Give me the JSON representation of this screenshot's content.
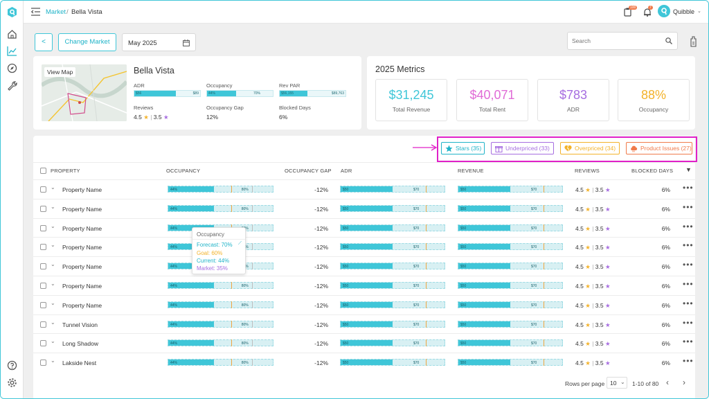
{
  "breadcrumb": {
    "parent": "Market",
    "separator": "/",
    "current": "Bella Vista"
  },
  "header": {
    "cart_badge": "100",
    "bell_badge": "7",
    "user_name": "Quibble"
  },
  "toolbar": {
    "back_label": "<",
    "change_market_label": "Change Market",
    "date_value": "May 2025",
    "search_placeholder": "Search"
  },
  "property_card": {
    "view_map_label": "View Map",
    "name": "Bella Vista",
    "adr": {
      "label": "ADR",
      "left": "$56",
      "right": "$89",
      "fill": 0.63
    },
    "occupancy": {
      "label": "Occupancy",
      "left": "44%",
      "right": "70%",
      "fill": 0.44
    },
    "revpar": {
      "label": "Rev PAR",
      "left": "$56,155",
      "right": "$89,763",
      "fill": 0.42
    },
    "reviews": {
      "label": "Reviews",
      "star_rating": "4.5",
      "sep": "|",
      "purple_rating": "3.5"
    },
    "occupancy_gap": {
      "label": "Occupancy Gap",
      "value": "12%"
    },
    "blocked_days": {
      "label": "Blocked Days",
      "value": "6%"
    }
  },
  "metrics": {
    "title": "2025 Metrics",
    "items": [
      {
        "value": "$31,245",
        "label": "Total Revenue",
        "color": "#3fc6d8"
      },
      {
        "value": "$40,071",
        "label": "Total Rent",
        "color": "#e06bd6"
      },
      {
        "value": "$783",
        "label": "ADR",
        "color": "#a66de0"
      },
      {
        "value": "88%",
        "label": "Occupancy",
        "color": "#f3b22a"
      }
    ]
  },
  "filters": [
    {
      "label": "Stars (35)",
      "color": "#1fb3c8",
      "icon": "star-icon"
    },
    {
      "label": "Underpriced (33)",
      "color": "#a66de0",
      "icon": "gift-icon"
    },
    {
      "label": "Overpriced (34)",
      "color": "#f3b22a",
      "icon": "broken-heart-icon"
    },
    {
      "label": "Product Issues (27)",
      "color": "#f07a4a",
      "icon": "cloud-icon"
    }
  ],
  "highlight_color": "#e020c8",
  "table": {
    "headers": {
      "property": "PROPERTY",
      "occupancy": "OCCUPANCY",
      "occupancy_gap": "OCCUPANCY GAP",
      "adr": "ADR",
      "revenue": "REVENUE",
      "reviews": "REVIEWS",
      "blocked_days": "BLOCKED DAYS"
    },
    "occ_bar": {
      "left": "44%",
      "right": "80%",
      "fill": 0.44,
      "goal": 0.6,
      "mark": 0.8
    },
    "adr_bar": {
      "left": "$50",
      "right": "$70",
      "fill": 0.5,
      "goal": 0.82
    },
    "rev_bar": {
      "left": "$50",
      "right": "$70",
      "fill": 0.5,
      "goal": 0.82
    },
    "rows": [
      {
        "name": "Property Name",
        "gap": "-12%",
        "star": "4.5",
        "sep": "|",
        "purple": "3.5",
        "blocked": "6%"
      },
      {
        "name": "Property Name",
        "gap": "-12%",
        "star": "4.5",
        "sep": "|",
        "purple": "3.5",
        "blocked": "6%"
      },
      {
        "name": "Property Name",
        "gap": "-12%",
        "star": "4.5",
        "sep": "|",
        "purple": "3.5",
        "blocked": "6%"
      },
      {
        "name": "Property Name",
        "gap": "-12%",
        "star": "4.5",
        "sep": "|",
        "purple": "3.5",
        "blocked": "6%"
      },
      {
        "name": "Property Name",
        "gap": "-12%",
        "star": "4.5",
        "sep": "|",
        "purple": "3.5",
        "blocked": "6%"
      },
      {
        "name": "Property Name",
        "gap": "-12%",
        "star": "4.5",
        "sep": "|",
        "purple": "3.5",
        "blocked": "6%"
      },
      {
        "name": "Property Name",
        "gap": "-12%",
        "star": "4.5",
        "sep": "|",
        "purple": "3.5",
        "blocked": "6%"
      },
      {
        "name": "Tunnel Vision",
        "gap": "-12%",
        "star": "4.5",
        "sep": "|",
        "purple": "3.5",
        "blocked": "6%"
      },
      {
        "name": "Long Shadow",
        "gap": "-12%",
        "star": "4.5",
        "sep": "|",
        "purple": "3.5",
        "blocked": "6%"
      },
      {
        "name": "Lakside Nest",
        "gap": "-12%",
        "star": "4.5",
        "sep": "|",
        "purple": "3.5",
        "blocked": "6%"
      }
    ]
  },
  "tooltip": {
    "title": "Occupancy",
    "forecast": "Forecast: 70%",
    "goal": "Goal: 60%",
    "current": "Current: 44%",
    "market": "Market: 35%"
  },
  "pagination": {
    "rows_label": "Rows per page",
    "rows_value": "10",
    "range": "1-10 of 80"
  }
}
